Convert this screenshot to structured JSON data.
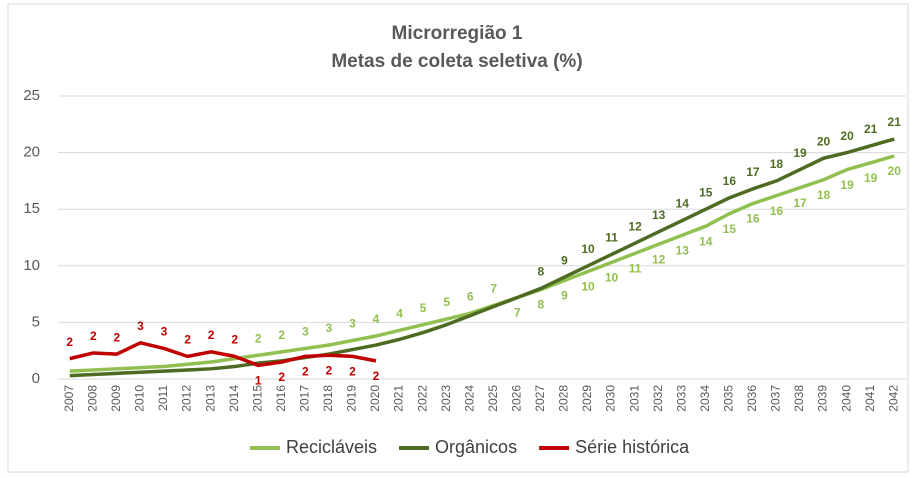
{
  "chart_data": {
    "type": "line",
    "title": "Microrregião 1",
    "subtitle": "Metas de coleta seletiva (%)",
    "categories": [
      "2007",
      "2008",
      "2009",
      "2010",
      "2011",
      "2012",
      "2013",
      "2014",
      "2015",
      "2016",
      "2017",
      "2018",
      "2019",
      "2020",
      "2021",
      "2022",
      "2023",
      "2024",
      "2025",
      "2026",
      "2027",
      "2028",
      "2029",
      "2030",
      "2031",
      "2032",
      "2033",
      "2034",
      "2035",
      "2036",
      "2037",
      "2038",
      "2039",
      "2040",
      "2041",
      "2042"
    ],
    "series": [
      {
        "name": "Recicláveis",
        "color": "#92c050",
        "values": [
          0.7,
          0.8,
          0.9,
          1.0,
          1.1,
          1.3,
          1.5,
          1.8,
          2.1,
          2.4,
          2.7,
          3.0,
          3.4,
          3.8,
          4.3,
          4.8,
          5.3,
          5.8,
          6.5,
          7.2,
          7.9,
          8.7,
          9.5,
          10.3,
          11.1,
          11.9,
          12.7,
          13.5,
          14.6,
          15.5,
          16.2,
          16.9,
          17.6,
          18.5,
          19.1,
          19.7
        ],
        "value_labels": [
          null,
          null,
          null,
          null,
          null,
          null,
          null,
          null,
          "2",
          "2",
          "3",
          "3",
          "3",
          "4",
          "4",
          "5",
          "5",
          "6",
          "7",
          "7",
          "8",
          "9",
          "10",
          "10",
          "11",
          "12",
          "13",
          "14",
          "15",
          "16",
          "16",
          "17",
          "18",
          "19",
          "19",
          "20"
        ]
      },
      {
        "name": "Orgânicos",
        "color": "#4e6b22",
        "values": [
          0.3,
          0.4,
          0.5,
          0.6,
          0.7,
          0.8,
          0.9,
          1.1,
          1.4,
          1.6,
          1.9,
          2.2,
          2.6,
          3.0,
          3.5,
          4.1,
          4.8,
          5.6,
          6.4,
          7.2,
          8.0,
          9.0,
          10.0,
          11.0,
          12.0,
          13.0,
          14.0,
          15.0,
          16.0,
          16.8,
          17.5,
          18.5,
          19.5,
          20.0,
          20.6,
          21.2
        ],
        "value_labels": [
          null,
          null,
          null,
          null,
          null,
          null,
          null,
          null,
          null,
          null,
          null,
          null,
          null,
          null,
          null,
          null,
          null,
          null,
          null,
          null,
          "8",
          "9",
          "10",
          "11",
          "12",
          "13",
          "14",
          "15",
          "16",
          "17",
          "18",
          "19",
          "20",
          "20",
          "21",
          "21"
        ]
      },
      {
        "name": "Série histórica",
        "color": "#c00000",
        "values": [
          1.8,
          2.3,
          2.2,
          3.2,
          2.7,
          2.0,
          2.4,
          2.0,
          1.2,
          1.5,
          2.0,
          2.1,
          2.0,
          1.6,
          null,
          null,
          null,
          null,
          null,
          null,
          null,
          null,
          null,
          null,
          null,
          null,
          null,
          null,
          null,
          null,
          null,
          null,
          null,
          null,
          null,
          null
        ],
        "value_labels": [
          "2",
          "2",
          "2",
          "3",
          "3",
          "2",
          "2",
          "2",
          "1",
          "2",
          "2",
          "2",
          "2",
          "2",
          null,
          null,
          null,
          null,
          null,
          null,
          null,
          null,
          null,
          null,
          null,
          null,
          null,
          null,
          null,
          null,
          null,
          null,
          null,
          null,
          null,
          null
        ]
      }
    ],
    "ylim": [
      0,
      25
    ],
    "yticks": [
      0,
      5,
      10,
      15,
      20,
      25
    ],
    "grid": true,
    "legend": "bottom"
  }
}
